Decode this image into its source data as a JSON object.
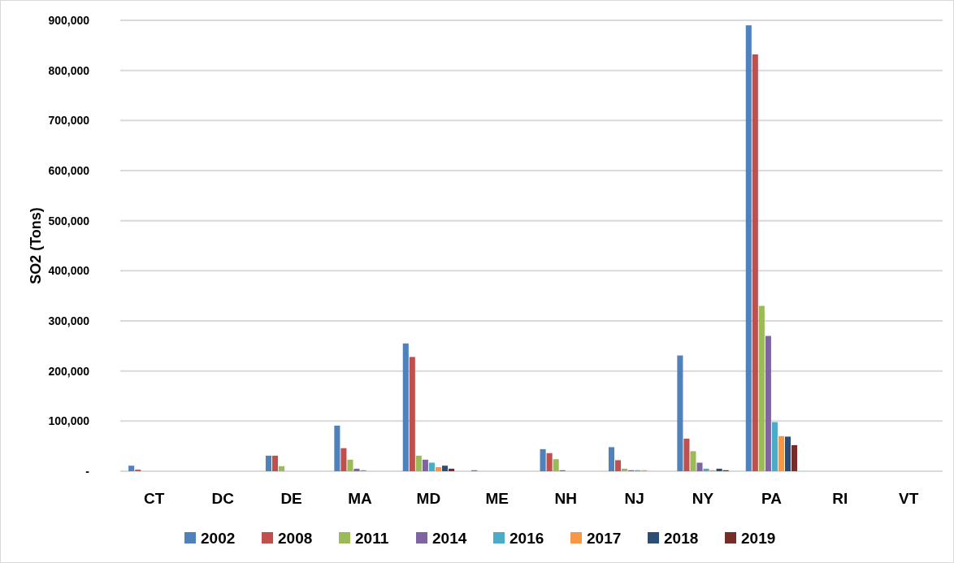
{
  "chart_data": {
    "type": "bar",
    "ylabel": "SO2 (Tons)",
    "categories": [
      "CT",
      "DC",
      "DE",
      "MA",
      "MD",
      "ME",
      "NH",
      "NJ",
      "NY",
      "PA",
      "RI",
      "VT"
    ],
    "series": [
      {
        "name": "2002",
        "color": "#4f81bd",
        "values": [
          11000,
          0,
          31000,
          91000,
          255000,
          2000,
          44000,
          48000,
          231000,
          890000,
          0,
          0
        ]
      },
      {
        "name": "2008",
        "color": "#c0504d",
        "values": [
          3000,
          0,
          31000,
          46000,
          228000,
          0,
          36000,
          22000,
          65000,
          832000,
          0,
          0
        ]
      },
      {
        "name": "2011",
        "color": "#9bbb59",
        "values": [
          0,
          0,
          10000,
          23000,
          31000,
          0,
          24000,
          5000,
          40000,
          330000,
          0,
          0
        ]
      },
      {
        "name": "2014",
        "color": "#8064a2",
        "values": [
          0,
          0,
          0,
          5000,
          23000,
          0,
          2000,
          2000,
          17000,
          270000,
          0,
          0
        ]
      },
      {
        "name": "2016",
        "color": "#4bacc6",
        "values": [
          0,
          0,
          0,
          2000,
          17000,
          0,
          0,
          2000,
          5000,
          98000,
          0,
          0
        ]
      },
      {
        "name": "2017",
        "color": "#f79646",
        "values": [
          0,
          0,
          0,
          0,
          8000,
          0,
          0,
          2000,
          2000,
          70000,
          0,
          0
        ]
      },
      {
        "name": "2018",
        "color": "#2c4d75",
        "values": [
          0,
          0,
          0,
          0,
          11000,
          0,
          0,
          0,
          5000,
          69000,
          0,
          0
        ]
      },
      {
        "name": "2019",
        "color": "#772c2a",
        "values": [
          0,
          0,
          0,
          0,
          5000,
          0,
          0,
          0,
          2000,
          52000,
          0,
          0
        ]
      }
    ],
    "ylim": [
      0,
      900000
    ],
    "yticks": [
      {
        "value": 0,
        "label": "-"
      },
      {
        "value": 100000,
        "label": "100,000"
      },
      {
        "value": 200000,
        "label": "200,000"
      },
      {
        "value": 300000,
        "label": "300,000"
      },
      {
        "value": 400000,
        "label": "400,000"
      },
      {
        "value": 500000,
        "label": "500,000"
      },
      {
        "value": 600000,
        "label": "600,000"
      },
      {
        "value": 700000,
        "label": "700,000"
      },
      {
        "value": 800000,
        "label": "800,000"
      },
      {
        "value": 900000,
        "label": "900,000"
      }
    ],
    "grid": "y",
    "legend": "bottom"
  }
}
